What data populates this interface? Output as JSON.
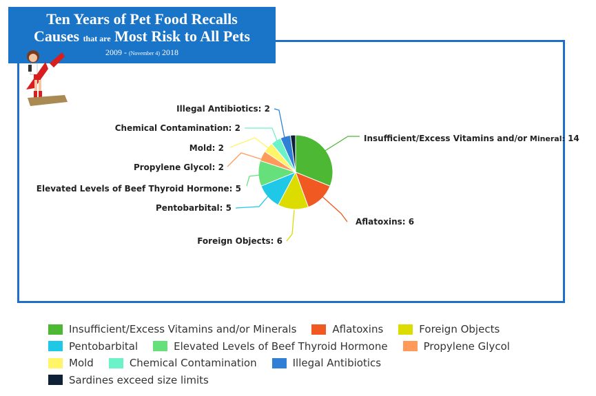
{
  "title": {
    "line1": "Ten Years of Pet Food Recalls",
    "line2_a": "Causes",
    "line2_b": "that are",
    "line2_c": "Most Risk to All Pets",
    "line3_a": "2009 - ",
    "line3_b": "(November 4)",
    "line3_c": " 2018"
  },
  "chart_data": {
    "type": "pie",
    "slices": [
      {
        "name": "Insufficient/Excess Vitamins and/or Minerals",
        "value": 14,
        "color": "#4cb834",
        "label_a": "Insufficient/Excess Vitamins and/or",
        "label_b": "Mineral:",
        "label_c": "14"
      },
      {
        "name": "Aflatoxins",
        "value": 6,
        "color": "#f05a22",
        "label_a": "Aflatoxins: 6"
      },
      {
        "name": "Foreign Objects",
        "value": 6,
        "color": "#dcdc00",
        "label_a": "Foreign Objects: 6"
      },
      {
        "name": "Pentobarbital",
        "value": 5,
        "color": "#1ec8e6",
        "label_a": "Pentobarbital: 5"
      },
      {
        "name": "Elevated Levels of Beef Thyroid Hormone",
        "value": 5,
        "color": "#66e07a",
        "label_a": "Elevated Levels of Beef Thyroid Hormone: 5"
      },
      {
        "name": "Propylene Glycol",
        "value": 2,
        "color": "#ff9a5a",
        "label_a": "Propylene Glycol: 2"
      },
      {
        "name": "Mold",
        "value": 2,
        "color": "#fff566",
        "label_a": "Mold: 2"
      },
      {
        "name": "Chemical Contamination",
        "value": 2,
        "color": "#6cf2c9",
        "label_a": "Chemical Contamination: 2"
      },
      {
        "name": "Illegal Antibiotics",
        "value": 2,
        "color": "#2f7fd6",
        "label_a": "Illegal Antibiotics: 2"
      },
      {
        "name": "Sardines exceed size limits",
        "value": 1,
        "color": "#0e2136"
      }
    ],
    "legend_position": "bottom"
  }
}
